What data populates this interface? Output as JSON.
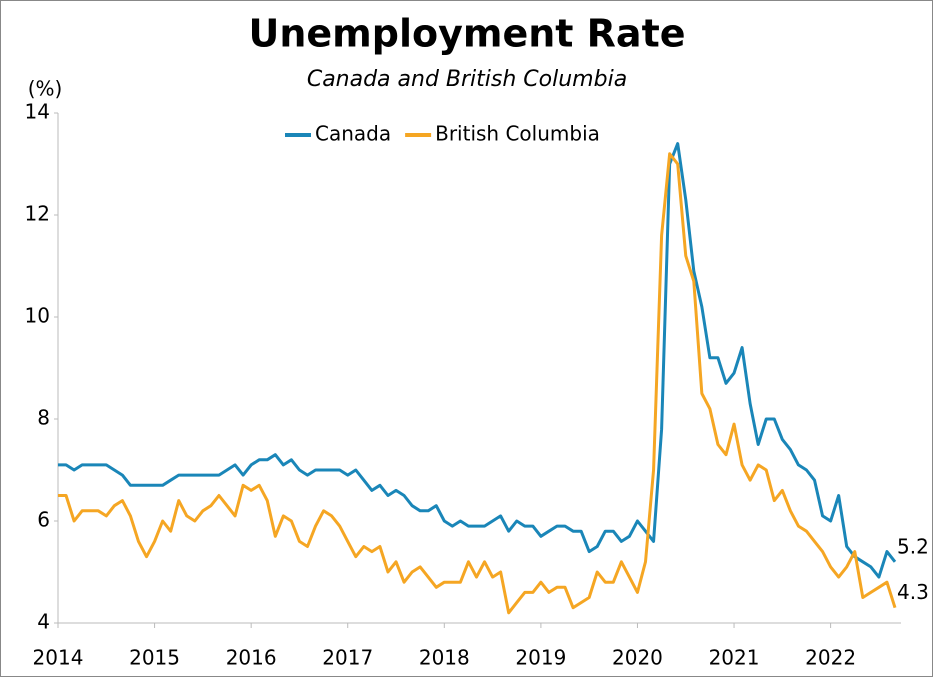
{
  "chart_data": {
    "type": "line",
    "title": "Unemployment Rate",
    "subtitle": "Canada and British Columbia",
    "y_label": "(%)",
    "categories": [
      "2014",
      null,
      null,
      null,
      null,
      null,
      null,
      null,
      null,
      null,
      null,
      null,
      "2015",
      null,
      null,
      null,
      null,
      null,
      null,
      null,
      null,
      null,
      null,
      null,
      "2016",
      null,
      null,
      null,
      null,
      null,
      null,
      null,
      null,
      null,
      null,
      null,
      "2017",
      null,
      null,
      null,
      null,
      null,
      null,
      null,
      null,
      null,
      null,
      null,
      "2018",
      null,
      null,
      null,
      null,
      null,
      null,
      null,
      null,
      null,
      null,
      null,
      "2019",
      null,
      null,
      null,
      null,
      null,
      null,
      null,
      null,
      null,
      null,
      null,
      "2020",
      null,
      null,
      null,
      null,
      null,
      null,
      null,
      null,
      null,
      null,
      null,
      "2021",
      null,
      null,
      null,
      null,
      null,
      null,
      null,
      null,
      null,
      null,
      null,
      "2022",
      null,
      null,
      null,
      null,
      null,
      null,
      null,
      null
    ],
    "series": [
      {
        "name": "Canada",
        "color": "#1a86b8",
        "values": [
          7.1,
          7.1,
          7.0,
          7.1,
          7.1,
          7.1,
          7.1,
          7.0,
          6.9,
          6.7,
          6.7,
          6.7,
          6.7,
          6.7,
          6.8,
          6.9,
          6.9,
          6.9,
          6.9,
          6.9,
          6.9,
          7.0,
          7.1,
          6.9,
          7.1,
          7.2,
          7.2,
          7.3,
          7.1,
          7.2,
          7.0,
          6.9,
          7.0,
          7.0,
          7.0,
          7.0,
          6.9,
          7.0,
          6.8,
          6.6,
          6.7,
          6.5,
          6.6,
          6.5,
          6.3,
          6.2,
          6.2,
          6.3,
          6.0,
          5.9,
          6.0,
          5.9,
          5.9,
          5.9,
          6.0,
          6.1,
          5.8,
          6.0,
          5.9,
          5.9,
          5.7,
          5.8,
          5.9,
          5.9,
          5.8,
          5.8,
          5.4,
          5.5,
          5.8,
          5.8,
          5.6,
          5.7,
          6.0,
          5.8,
          5.6,
          7.8,
          13.0,
          13.4,
          12.3,
          10.9,
          10.2,
          9.2,
          9.2,
          8.7,
          8.9,
          9.4,
          8.3,
          7.5,
          8.0,
          8.0,
          7.6,
          7.4,
          7.1,
          7.0,
          6.8,
          6.1,
          6.0,
          6.5,
          5.5,
          5.3,
          5.2,
          5.1,
          4.9,
          5.4,
          5.2
        ]
      },
      {
        "name": "British Columbia",
        "color": "#f5a623",
        "values": [
          6.5,
          6.5,
          6.0,
          6.2,
          6.2,
          6.2,
          6.1,
          6.3,
          6.4,
          6.1,
          5.6,
          5.3,
          5.6,
          6.0,
          5.8,
          6.4,
          6.1,
          6.0,
          6.2,
          6.3,
          6.5,
          6.3,
          6.1,
          6.7,
          6.6,
          6.7,
          6.4,
          5.7,
          6.1,
          6.0,
          5.6,
          5.5,
          5.9,
          6.2,
          6.1,
          5.9,
          5.6,
          5.3,
          5.5,
          5.4,
          5.5,
          5.0,
          5.2,
          4.8,
          5.0,
          5.1,
          4.9,
          4.7,
          4.8,
          4.8,
          4.8,
          5.2,
          4.9,
          5.2,
          4.9,
          5.0,
          4.2,
          4.4,
          4.6,
          4.6,
          4.8,
          4.6,
          4.7,
          4.7,
          4.3,
          4.4,
          4.5,
          5.0,
          4.8,
          4.8,
          5.2,
          4.9,
          4.6,
          5.2,
          7.0,
          11.6,
          13.2,
          13.0,
          11.2,
          10.7,
          8.5,
          8.2,
          7.5,
          7.3,
          7.9,
          7.1,
          6.8,
          7.1,
          7.0,
          6.4,
          6.6,
          6.2,
          5.9,
          5.8,
          5.6,
          5.4,
          5.1,
          4.9,
          5.1,
          5.4,
          4.5,
          4.6,
          4.7,
          4.8,
          4.3
        ]
      }
    ],
    "ylim": [
      4,
      14
    ],
    "yticks": [
      4,
      6,
      8,
      10,
      12,
      14
    ],
    "grid": false
  }
}
